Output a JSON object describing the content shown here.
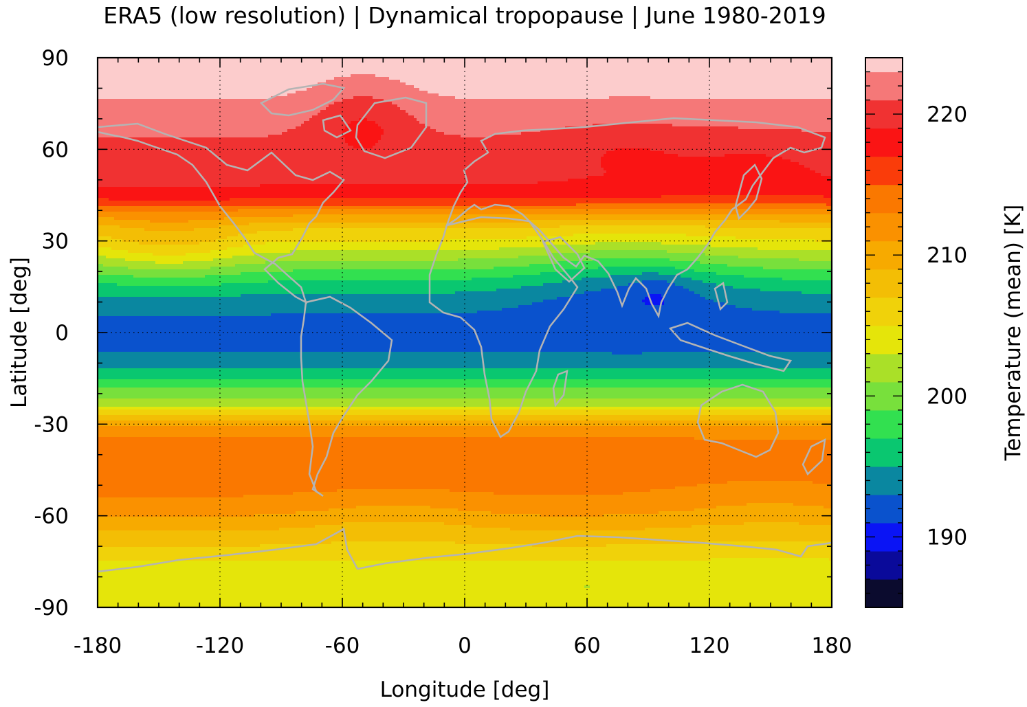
{
  "chart_data": {
    "type": "heatmap",
    "title": "ERA5 (low resolution) | Dynamical tropopause | June 1980-2019",
    "xlabel": "Longitude [deg]",
    "ylabel": "Latitude [deg]",
    "colorbar_label": "Temperature (mean) [K]",
    "xlim": [
      -180,
      180
    ],
    "ylim": [
      -90,
      90
    ],
    "x_ticks": [
      "-180",
      "-120",
      "-60",
      "0",
      "60",
      "120",
      "180"
    ],
    "y_ticks": [
      "90",
      "60",
      "30",
      "0",
      "-30",
      "-60",
      "-90"
    ],
    "x_tick_values": [
      -180,
      -120,
      -60,
      0,
      60,
      120,
      180
    ],
    "y_tick_values": [
      90,
      60,
      30,
      0,
      -30,
      -60,
      -90
    ],
    "grid": true,
    "coastlines": true,
    "colorbar": {
      "range": [
        185,
        224
      ],
      "ticks": [
        "220",
        "210",
        "200",
        "190"
      ],
      "tick_values": [
        220,
        210,
        200,
        190
      ],
      "levels": [
        {
          "from": 185,
          "to": 187,
          "color": "#0b0b2e"
        },
        {
          "from": 187,
          "to": 189,
          "color": "#0a0a9a"
        },
        {
          "from": 189,
          "to": 191,
          "color": "#0a14f5"
        },
        {
          "from": 191,
          "to": 193,
          "color": "#0a52cd"
        },
        {
          "from": 193,
          "to": 195,
          "color": "#0a87a0"
        },
        {
          "from": 195,
          "to": 197,
          "color": "#0ac770"
        },
        {
          "from": 197,
          "to": 199,
          "color": "#32e050"
        },
        {
          "from": 199,
          "to": 201,
          "color": "#78e03c"
        },
        {
          "from": 201,
          "to": 203,
          "color": "#aae028"
        },
        {
          "from": 203,
          "to": 205,
          "color": "#e5e50a"
        },
        {
          "from": 205,
          "to": 207,
          "color": "#f0d20a"
        },
        {
          "from": 207,
          "to": 209,
          "color": "#f3be05"
        },
        {
          "from": 209,
          "to": 211,
          "color": "#f7aa00"
        },
        {
          "from": 211,
          "to": 213,
          "color": "#fa9100"
        },
        {
          "from": 213,
          "to": 215,
          "color": "#fa7800"
        },
        {
          "from": 215,
          "to": 217,
          "color": "#fa3c0a"
        },
        {
          "from": 217,
          "to": 219,
          "color": "#fa1414"
        },
        {
          "from": 219,
          "to": 221,
          "color": "#f03232"
        },
        {
          "from": 221,
          "to": 223,
          "color": "#f57878"
        },
        {
          "from": 223,
          "to": 224,
          "color": "#fccccc"
        }
      ]
    },
    "zonal_mean_profile": {
      "lat": [
        90,
        80,
        72,
        66,
        60,
        52,
        46,
        42,
        40,
        37,
        34,
        30,
        26,
        22,
        18,
        14,
        10,
        6,
        0,
        -6,
        -12,
        -16,
        -20,
        -24,
        -26,
        -28,
        -30,
        -34,
        -40,
        -46,
        -52,
        -58,
        -64,
        -70,
        -76,
        -82,
        -90
      ],
      "value": [
        224,
        223.5,
        222.4,
        221.3,
        220.5,
        219.8,
        218.5,
        215.5,
        212.5,
        209.8,
        207,
        205,
        202.5,
        200,
        197.5,
        195.5,
        194,
        193,
        192.5,
        193,
        195,
        197.5,
        200,
        203,
        205.5,
        208,
        210.5,
        213,
        214.5,
        214.8,
        213.5,
        212,
        209.5,
        207,
        204.5,
        204,
        204
      ]
    }
  }
}
